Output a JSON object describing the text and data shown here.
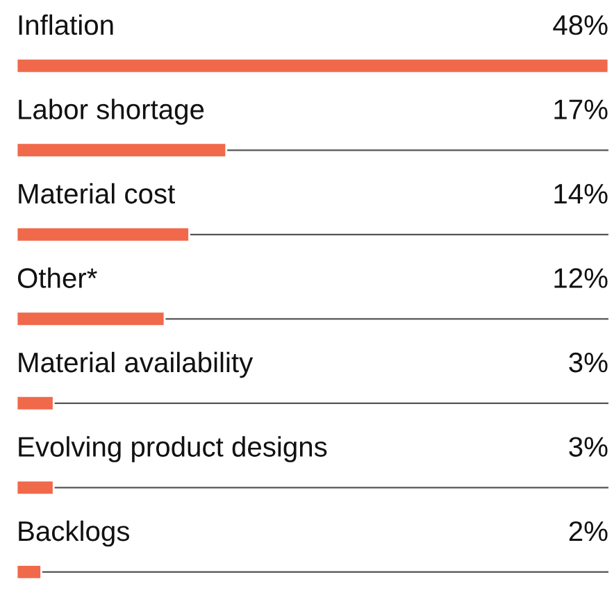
{
  "chart_data": {
    "type": "bar",
    "orientation": "horizontal",
    "categories": [
      "Inflation",
      "Labor shortage",
      "Material cost",
      "Other*",
      "Material availability",
      "Evolving product designs",
      "Backlogs"
    ],
    "values": [
      48,
      17,
      14,
      12,
      3,
      3,
      2
    ],
    "value_labels": [
      "48%",
      "17%",
      "14%",
      "12%",
      "3%",
      "3%",
      "2%"
    ],
    "color": "#f0694b"
  }
}
